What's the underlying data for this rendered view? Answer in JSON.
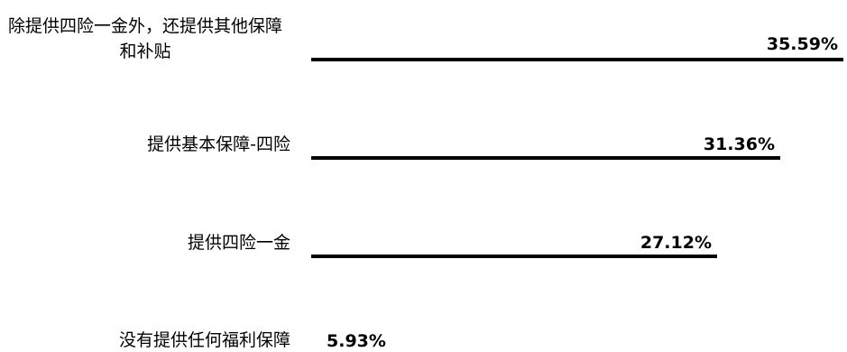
{
  "chart_data": {
    "type": "bar",
    "orientation": "horizontal",
    "categories": [
      "除提供四险一金外，还提供其他保障和补贴",
      "提供基本保障-四险",
      "提供四险一金",
      "没有提供任何福利保障"
    ],
    "values": [
      35.59,
      31.36,
      27.12,
      5.93
    ],
    "value_labels": [
      "35.59%",
      "31.36%",
      "27.12%",
      "5.93%"
    ],
    "xlim": [
      0,
      35.59
    ],
    "title": "",
    "xlabel": "",
    "ylabel": "",
    "grid": false,
    "legend": "none",
    "bar_color": "#000000"
  }
}
